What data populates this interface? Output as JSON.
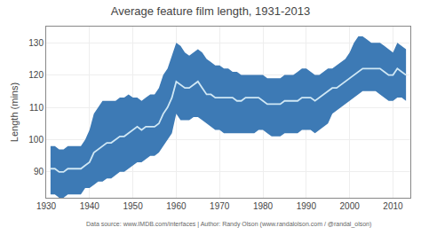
{
  "chart_data": {
    "type": "line",
    "title": "Average feature film length, 1931-2013",
    "ylabel": "Length (mins)",
    "annotations": [
      "Data source: www.IMDB.com/interfaces | Author: Randy Olson (www.randalolson.com / @randal_olson)"
    ],
    "x": [
      1931,
      1932,
      1933,
      1934,
      1935,
      1936,
      1937,
      1938,
      1939,
      1940,
      1941,
      1942,
      1943,
      1944,
      1945,
      1946,
      1947,
      1948,
      1949,
      1950,
      1951,
      1952,
      1953,
      1954,
      1955,
      1956,
      1957,
      1958,
      1959,
      1960,
      1961,
      1962,
      1963,
      1964,
      1965,
      1966,
      1967,
      1968,
      1969,
      1970,
      1971,
      1972,
      1973,
      1974,
      1975,
      1976,
      1977,
      1978,
      1979,
      1980,
      1981,
      1982,
      1983,
      1984,
      1985,
      1986,
      1987,
      1988,
      1989,
      1990,
      1991,
      1992,
      1993,
      1994,
      1995,
      1996,
      1997,
      1998,
      1999,
      2000,
      2001,
      2002,
      2003,
      2004,
      2005,
      2006,
      2007,
      2008,
      2009,
      2010,
      2011,
      2012,
      2013
    ],
    "series": [
      {
        "type": "band",
        "color": "#3d7ab5",
        "upper": [
          98,
          98,
          97,
          97,
          98,
          98,
          98,
          98,
          100,
          103,
          108,
          110,
          112,
          112,
          112,
          112,
          113,
          113,
          114,
          113,
          113,
          112,
          113,
          114,
          114,
          116,
          120,
          122,
          126,
          130,
          129,
          127,
          126,
          127,
          128,
          127,
          125,
          124,
          123,
          123,
          122,
          122,
          121,
          121,
          120,
          120,
          120,
          120,
          120,
          120,
          119,
          119,
          119,
          119,
          120,
          120,
          120,
          121,
          122,
          122,
          121,
          120,
          120,
          121,
          122,
          122,
          123,
          124,
          125,
          127,
          130,
          132,
          132,
          131,
          130,
          130,
          130,
          129,
          128,
          127,
          130,
          129,
          128
        ],
        "lower": [
          83,
          83,
          82,
          82,
          83,
          83,
          83,
          83,
          85,
          85,
          86,
          87,
          87,
          88,
          88,
          89,
          90,
          90,
          91,
          92,
          93,
          93,
          94,
          95,
          95,
          96,
          98,
          100,
          102,
          108,
          106,
          106,
          106,
          107,
          107,
          106,
          105,
          104,
          103,
          103,
          102,
          102,
          102,
          102,
          102,
          102,
          102,
          102,
          103,
          103,
          102,
          101,
          101,
          101,
          102,
          102,
          102,
          102,
          103,
          103,
          103,
          102,
          103,
          104,
          105,
          108,
          109,
          110,
          111,
          112,
          113,
          114,
          115,
          115,
          115,
          115,
          114,
          113,
          112,
          112,
          113,
          113,
          112
        ]
      },
      {
        "type": "line",
        "color": "#d0e8f5",
        "values": [
          91,
          91,
          90,
          90,
          91,
          91,
          91,
          91,
          92,
          93,
          96,
          97,
          98,
          99,
          99,
          100,
          101,
          101,
          102,
          103,
          104,
          103,
          104,
          104,
          104,
          105,
          108,
          110,
          113,
          118,
          117,
          116,
          116,
          117,
          118,
          116,
          114,
          114,
          113,
          113,
          113,
          113,
          113,
          112,
          112,
          113,
          113,
          113,
          113,
          112,
          111,
          111,
          111,
          111,
          112,
          112,
          112,
          112,
          113,
          113,
          113,
          112,
          113,
          114,
          115,
          116,
          116,
          117,
          118,
          119,
          120,
          121,
          122,
          122,
          122,
          122,
          122,
          121,
          120,
          120,
          122,
          121,
          120
        ]
      }
    ],
    "xlim": [
      1930,
      2014
    ],
    "ylim": [
      82,
      135
    ],
    "xticks": [
      1930,
      1940,
      1950,
      1960,
      1970,
      1980,
      1990,
      2000,
      2010
    ],
    "yticks": [
      90,
      100,
      110,
      120,
      130
    ],
    "grid": true
  }
}
